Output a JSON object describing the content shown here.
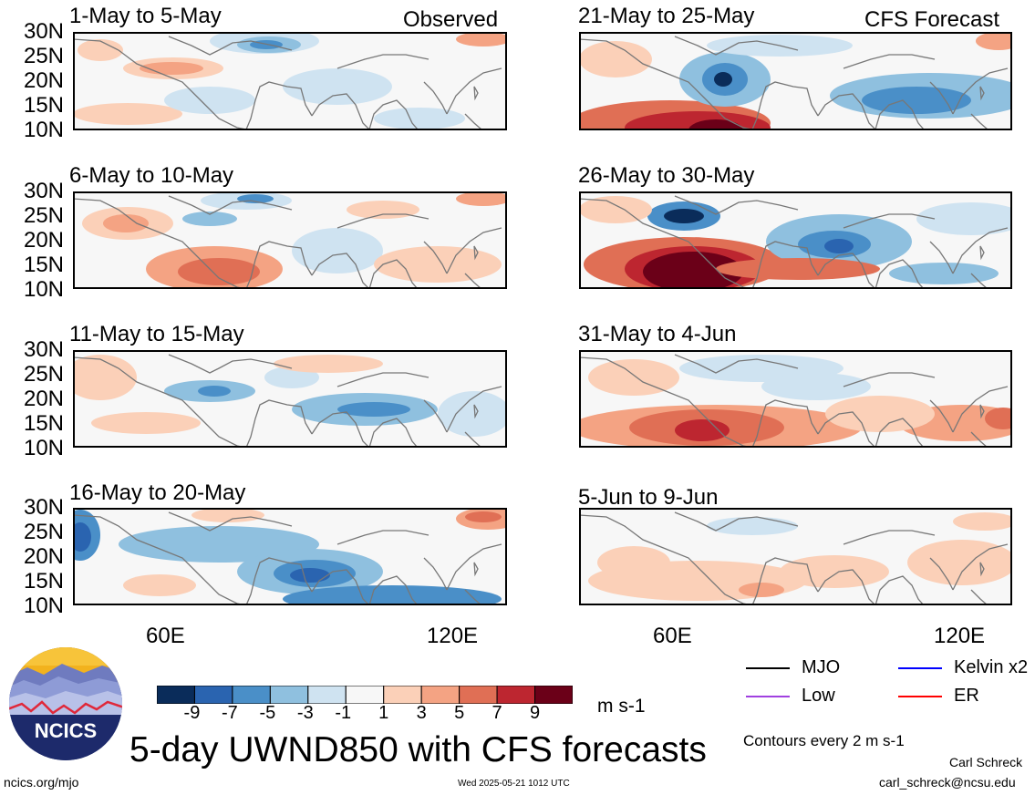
{
  "title": "5-day UWND850 with CFS forecasts",
  "observed_label": "Observed",
  "forecast_label": "CFS Forecast",
  "units": "m s-1",
  "contour_note": "Contours every 2 m s-1",
  "footer_left": "ncics.org/mjo",
  "footer_center": "Wed 2025-05-21 1012 UTC",
  "author": "Carl Schreck",
  "email": "carl_schreck@ncsu.edu",
  "logo_text": "NCICS",
  "colors": {
    "c_m9": "#0a2c5a",
    "c_m7": "#2a64b0",
    "c_m5": "#4a8fc8",
    "c_m3": "#8fc0df",
    "c_m1": "#cfe3f1",
    "c_0": "#f7f7f7",
    "c_1": "#fbd0b8",
    "c_3": "#f4a383",
    "c_5": "#e06f55",
    "c_7": "#bd2630",
    "c_9": "#6b0018",
    "mjo": "#000000",
    "kelvin": "#0000ff",
    "low": "#a040e0",
    "er": "#ff0000"
  },
  "legend": [
    {
      "label": "MJO",
      "color": "#000000"
    },
    {
      "label": "Kelvin x2",
      "color": "#0000ff"
    },
    {
      "label": "Low",
      "color": "#a040e0"
    },
    {
      "label": "ER",
      "color": "#ff0000"
    }
  ],
  "chart_data": {
    "type": "heatmap",
    "variable": "UWND850",
    "y_ticks": [
      "30N",
      "25N",
      "20N",
      "15N",
      "10N"
    ],
    "x_ticks": [
      "60E",
      "120E"
    ],
    "colorbar": {
      "levels": [
        -9,
        -7,
        -5,
        -3,
        -1,
        1,
        3,
        5,
        7,
        9
      ],
      "labels": [
        "-9",
        "-7",
        "-5",
        "-3",
        "-1",
        "1",
        "3",
        "5",
        "7",
        "9"
      ],
      "colors": [
        "#0a2c5a",
        "#2a64b0",
        "#4a8fc8",
        "#8fc0df",
        "#cfe3f1",
        "#f7f7f7",
        "#fbd0b8",
        "#f4a383",
        "#e06f55",
        "#bd2630",
        "#6b0018"
      ],
      "units": "m s-1"
    },
    "panels": [
      {
        "title": "1-May to 5-May",
        "source": "Observed"
      },
      {
        "title": "6-May to 10-May",
        "source": "Observed"
      },
      {
        "title": "11-May to 15-May",
        "source": "Observed"
      },
      {
        "title": "16-May to 20-May",
        "source": "Observed"
      },
      {
        "title": "21-May to 25-May",
        "source": "CFS Forecast"
      },
      {
        "title": "26-May to 30-May",
        "source": "CFS Forecast"
      },
      {
        "title": "31-May to 4-Jun",
        "source": "CFS Forecast"
      },
      {
        "title": "5-Jun to 9-Jun",
        "source": "CFS Forecast"
      }
    ]
  }
}
